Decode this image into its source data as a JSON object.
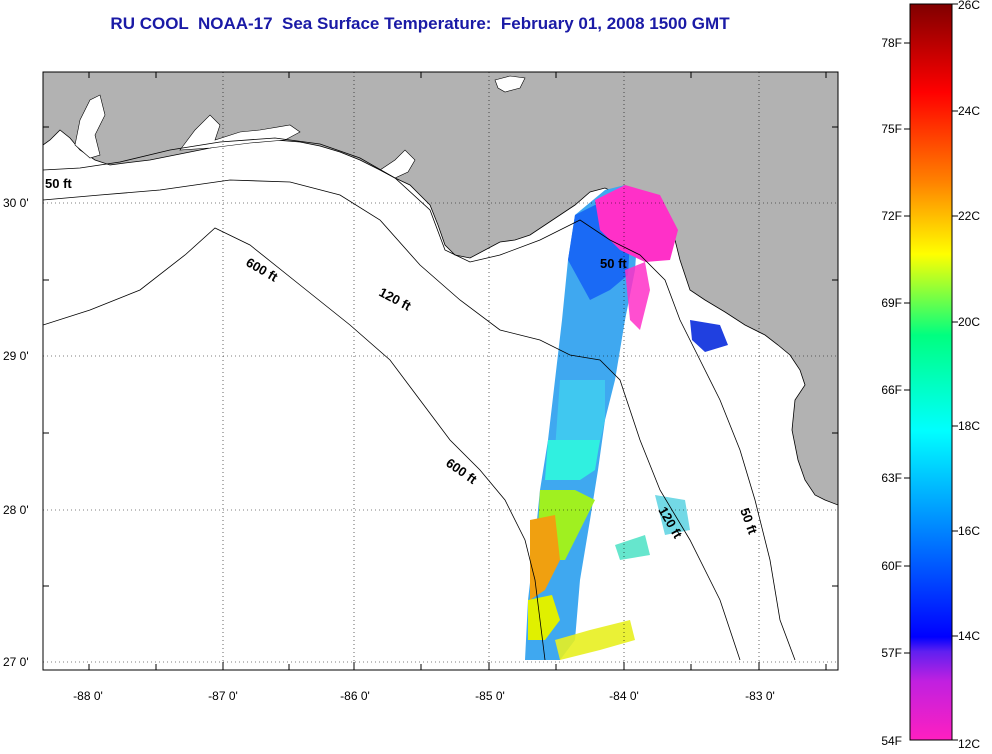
{
  "title": "RU COOL  NOAA-17  Sea Surface Temperature:  February 01, 2008 1500 GMT",
  "map": {
    "lon_ticks": [
      "-88 0'",
      "-87 0'",
      "-86 0'",
      "-85 0'",
      "-84 0'",
      "-83 0'"
    ],
    "lat_ticks": [
      "30 0'",
      "29 0'",
      "28 0'",
      "27 0'"
    ],
    "contours": [
      {
        "label": "50 ft",
        "which": "50a"
      },
      {
        "label": "600 ft",
        "which": "600a"
      },
      {
        "label": "120 ft",
        "which": "120a"
      },
      {
        "label": "50 ft",
        "which": "50b"
      },
      {
        "label": "600 ft",
        "which": "600b"
      },
      {
        "label": "120 ft",
        "which": "120b"
      },
      {
        "label": "50 ft",
        "which": "50c"
      }
    ],
    "colors": {
      "land": "#b2b2b2",
      "water": "#ffffff",
      "grid": "#000000"
    }
  },
  "colorbar": {
    "f_labels": [
      "78F",
      "75F",
      "72F",
      "69F",
      "66F",
      "63F",
      "60F",
      "57F",
      "54F"
    ],
    "c_labels": [
      "26C",
      "24C",
      "22C",
      "20C",
      "18C",
      "16C",
      "14C",
      "12C"
    ]
  }
}
